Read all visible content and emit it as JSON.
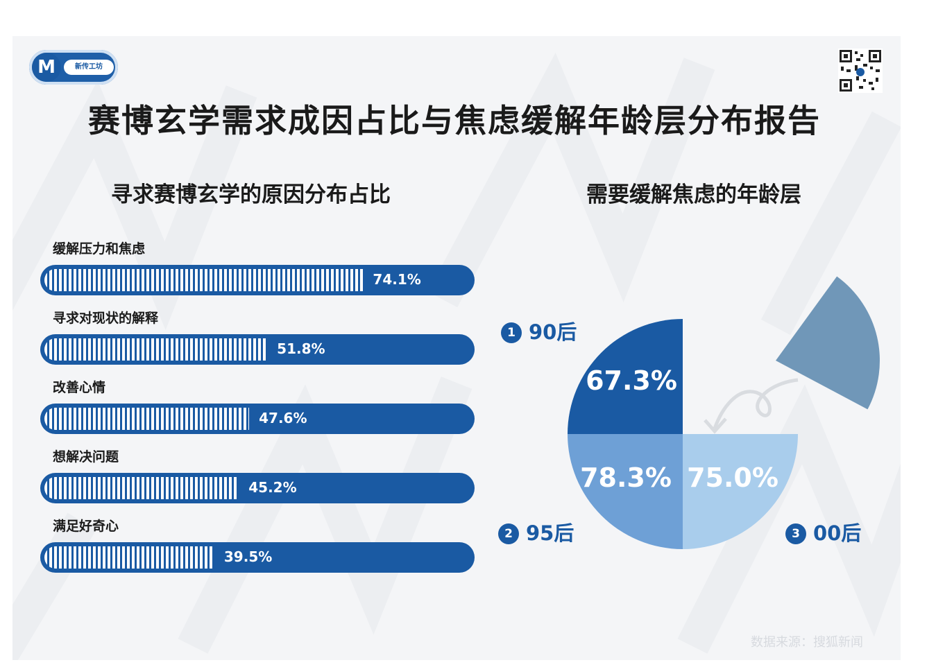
{
  "header": {
    "logo_text": "新传工坊",
    "title": "赛博玄学需求成因占比与焦虑缓解年龄层分布报告"
  },
  "colors": {
    "dark_blue": "#1a5aa3",
    "mid_blue": "#6ea0d6",
    "light_blue": "#a9cdec",
    "steel_blue": "#7097b8"
  },
  "source": "数据来源：搜狐新闻",
  "chart_data": [
    {
      "type": "bar",
      "orientation": "horizontal",
      "title": "寻求赛博玄学的原因分布占比",
      "unit": "%",
      "xlim": [
        0,
        100
      ],
      "categories": [
        "缓解压力和焦虑",
        "寻求对现状的解释",
        "改善心情",
        "想解决问题",
        "满足好奇心"
      ],
      "values": [
        74.1,
        51.8,
        47.6,
        45.2,
        39.5
      ],
      "value_labels": [
        "74.1%",
        "51.8%",
        "47.6%",
        "45.2%",
        "39.5%"
      ]
    },
    {
      "type": "pie",
      "title": "需要缓解焦虑的年龄层",
      "unit": "%",
      "categories": [
        "90后",
        "95后",
        "00后"
      ],
      "category_numbers": [
        "1",
        "2",
        "3"
      ],
      "values": [
        67.3,
        78.3,
        75.0
      ],
      "value_labels": [
        "67.3%",
        "78.3%",
        "75.0%"
      ]
    }
  ]
}
